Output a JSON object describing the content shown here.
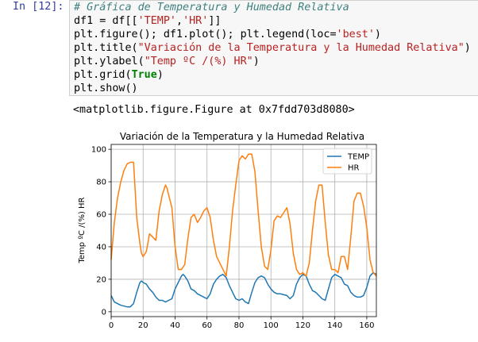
{
  "cell": {
    "prompt": "In [12]:",
    "code": {
      "line1": "# Gráfica de Temperatura y Humedad Relativa",
      "line2_a": "df1 = df[[",
      "line2_s1": "'TEMP'",
      "line2_b": ",",
      "line2_s2": "'HR'",
      "line2_c": "]]",
      "line3_a": "plt.figure(); df1.plot(); plt.legend(loc=",
      "line3_s": "'best'",
      "line3_b": ")",
      "line4_a": "plt.title(",
      "line4_s": "\"Variación de la Temperatura y la Humedad Relativa\"",
      "line4_b": ")",
      "line5_a": "plt.ylabel(",
      "line5_s": "\"Temp ºC /(%) HR\"",
      "line5_b": ")",
      "line6_a": "plt.grid(",
      "line6_k": "True",
      "line6_b": ")",
      "line7": "plt.show()"
    },
    "output_text": "<matplotlib.figure.Figure at 0x7fdd703d8080>"
  },
  "colors": {
    "temp": "#1f77b4",
    "hr": "#ff7f0e",
    "grid": "#b0b0b0"
  },
  "chart_data": {
    "type": "line",
    "title": "Variación de la Temperatura y la Humedad Relativa",
    "xlabel": "",
    "ylabel": "Temp ºC /(%) HR",
    "xlim": [
      0,
      166
    ],
    "ylim": [
      -3,
      103
    ],
    "xticks": [
      0,
      20,
      40,
      60,
      80,
      100,
      120,
      140,
      160
    ],
    "yticks": [
      0,
      20,
      40,
      60,
      80,
      100
    ],
    "grid": true,
    "legend_position": "top-right",
    "series": [
      {
        "name": "TEMP",
        "x": [
          0,
          2,
          4,
          6,
          8,
          10,
          12,
          14,
          16,
          18,
          19,
          20,
          22,
          24,
          26,
          28,
          30,
          32,
          34,
          36,
          38,
          40,
          42,
          44,
          45,
          46,
          48,
          50,
          52,
          54,
          56,
          58,
          60,
          62,
          64,
          66,
          68,
          70,
          72,
          74,
          76,
          78,
          80,
          82,
          84,
          86,
          88,
          90,
          92,
          94,
          96,
          98,
          100,
          102,
          104,
          106,
          108,
          110,
          112,
          114,
          116,
          118,
          120,
          122,
          124,
          126,
          128,
          130,
          132,
          134,
          136,
          138,
          140,
          142,
          144,
          146,
          148,
          150,
          152,
          154,
          156,
          158,
          160,
          162,
          164,
          166
        ],
        "y": [
          10,
          6,
          5,
          4,
          3.5,
          3,
          3,
          5,
          12,
          18,
          19,
          18,
          17,
          14,
          12,
          9,
          7,
          7,
          6,
          7,
          8,
          14,
          18,
          22,
          23,
          22,
          19,
          14,
          13,
          11,
          10,
          9,
          8,
          11,
          17,
          20,
          22,
          23,
          21,
          16,
          12,
          8,
          7,
          8,
          6,
          5,
          12,
          18,
          21,
          22,
          21,
          17,
          14,
          12,
          11,
          11,
          10.5,
          10,
          8,
          10,
          17,
          21,
          23,
          22,
          17,
          13,
          12,
          10,
          8,
          7,
          14,
          21,
          23,
          22,
          21,
          17,
          16,
          12,
          10,
          9,
          9,
          10,
          15,
          22,
          24,
          23
        ]
      },
      {
        "name": "HR",
        "x": [
          0,
          2,
          4,
          6,
          8,
          10,
          12,
          14,
          15,
          16,
          18,
          19,
          20,
          22,
          24,
          26,
          28,
          30,
          32,
          34,
          35,
          36,
          38,
          40,
          42,
          44,
          46,
          48,
          50,
          52,
          54,
          56,
          58,
          60,
          62,
          64,
          66,
          68,
          70,
          72,
          74,
          76,
          78,
          80,
          82,
          84,
          86,
          88,
          90,
          92,
          94,
          96,
          98,
          100,
          102,
          104,
          106,
          108,
          110,
          112,
          114,
          116,
          118,
          120,
          122,
          124,
          126,
          128,
          130,
          132,
          134,
          136,
          138,
          140,
          142,
          144,
          146,
          148,
          150,
          152,
          154,
          156,
          158,
          160,
          162,
          164,
          166
        ],
        "y": [
          32,
          55,
          70,
          80,
          87,
          91,
          92,
          92,
          75,
          58,
          42,
          36,
          34,
          37,
          48,
          46,
          44,
          62,
          72,
          78,
          76,
          72,
          64,
          40,
          26,
          26,
          29,
          45,
          58,
          60,
          55,
          58,
          62,
          64,
          58,
          44,
          34,
          30,
          26,
          22,
          40,
          62,
          78,
          93,
          96,
          94,
          97,
          97,
          86,
          62,
          40,
          28,
          26,
          38,
          56,
          59,
          58,
          61,
          64,
          54,
          36,
          26,
          23,
          24,
          22,
          30,
          50,
          68,
          78,
          78,
          55,
          35,
          26,
          26,
          24,
          34,
          34,
          26,
          46,
          68,
          73,
          73,
          65,
          52,
          32,
          24,
          22
        ]
      }
    ]
  }
}
